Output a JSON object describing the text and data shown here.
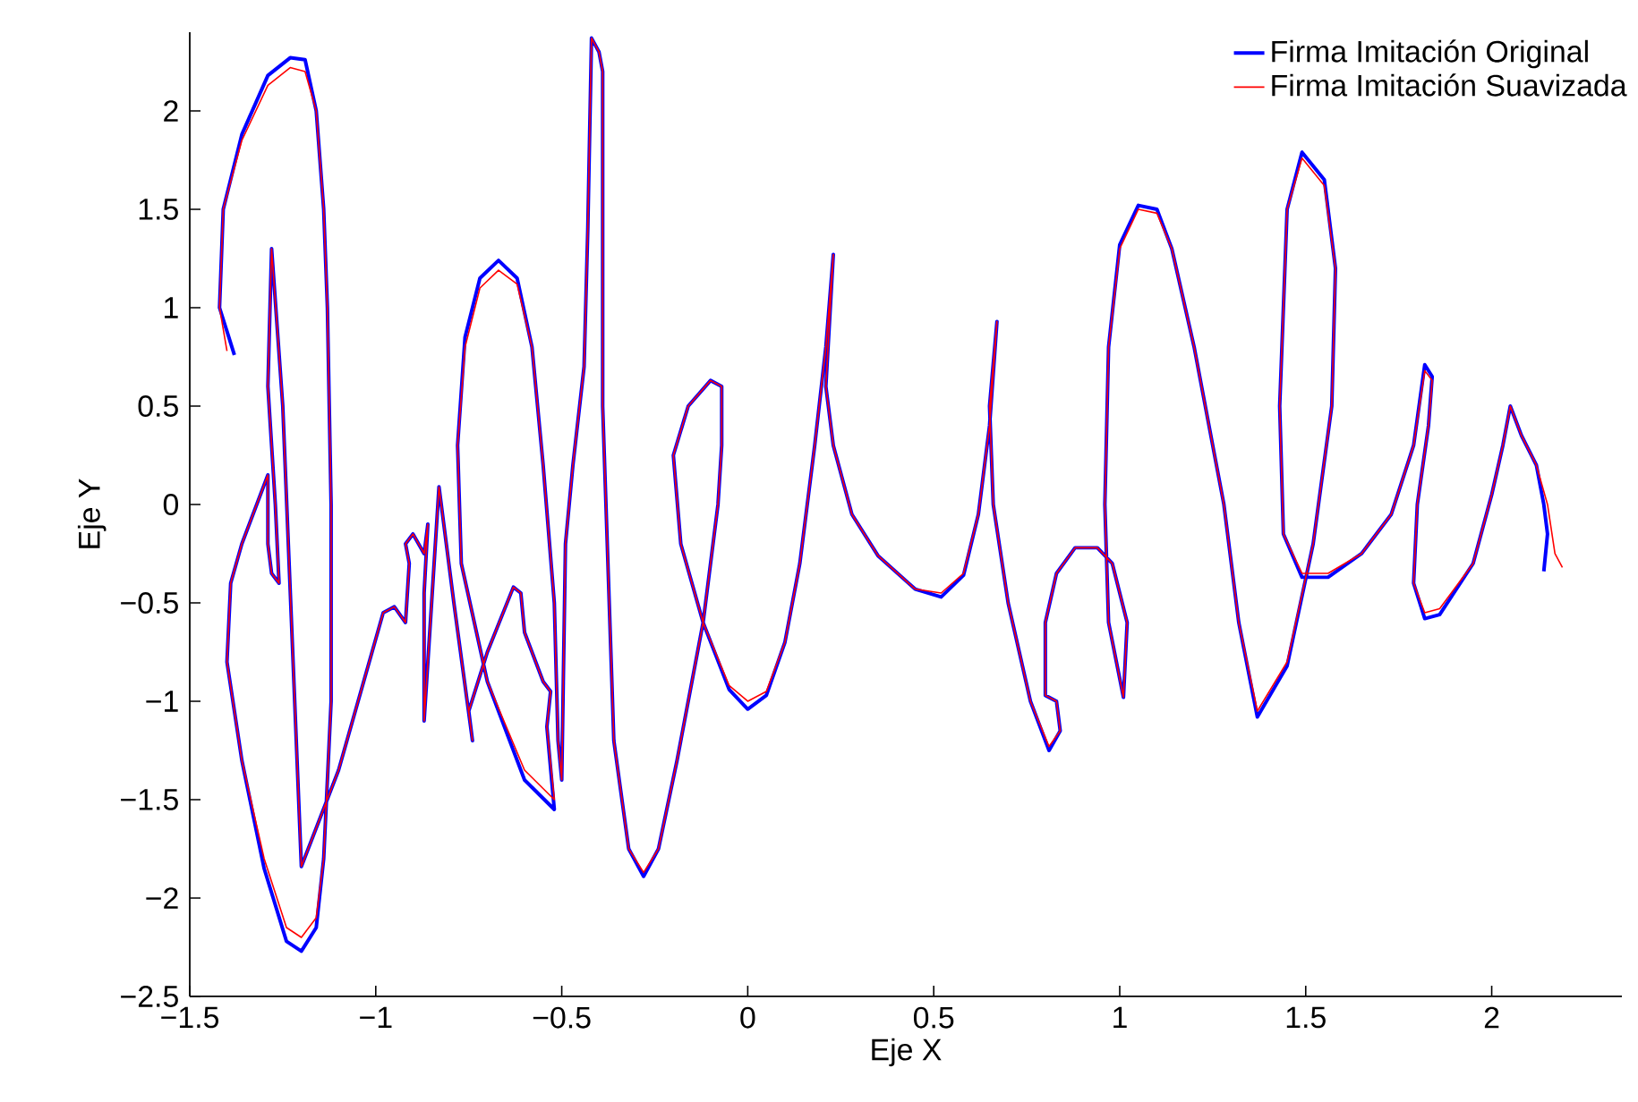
{
  "chart_data": {
    "type": "line",
    "xlabel": "Eje X",
    "ylabel": "Eje Y",
    "xlim": [
      -1.5,
      2.35
    ],
    "ylim": [
      -2.5,
      2.4
    ],
    "xticks": [
      {
        "value": -1.5,
        "label": "−1.5"
      },
      {
        "value": -1,
        "label": "−1"
      },
      {
        "value": -0.5,
        "label": "−0.5"
      },
      0,
      0.5,
      1,
      1.5,
      2
    ],
    "yticks": [
      {
        "value": -2.5,
        "label": "−2.5"
      },
      {
        "value": -2,
        "label": "−2"
      },
      {
        "value": -1.5,
        "label": "−1.5"
      },
      {
        "value": -1,
        "label": "−1"
      },
      {
        "value": -0.5,
        "label": "−0.5"
      },
      0,
      0.5,
      1,
      1.5,
      2
    ],
    "grid": false,
    "legend": "top right",
    "marker": "none",
    "line_style": "solid",
    "series": [
      {
        "name": "Firma Imitación Original",
        "color": "#0000ff",
        "x": [
          -1.38,
          -1.42,
          -1.41,
          -1.36,
          -1.29,
          -1.23,
          -1.19,
          -1.16,
          -1.14,
          -1.13,
          -1.12,
          -1.12,
          -1.14,
          -1.16,
          -1.2,
          -1.24,
          -1.3,
          -1.36,
          -1.4,
          -1.39,
          -1.36,
          -1.32,
          -1.29,
          -1.29,
          -1.28,
          -1.26,
          -1.27,
          -1.29,
          -1.28,
          -1.25,
          -1.2,
          -1.1,
          -0.98,
          -0.95,
          -0.92,
          -0.91,
          -0.92,
          -0.9,
          -0.87,
          -0.86,
          -0.87,
          -0.87,
          -0.83,
          -0.79,
          -0.74,
          -0.75,
          -0.7,
          -0.63,
          -0.61,
          -0.6,
          -0.57,
          -0.55,
          -0.53,
          -0.54,
          -0.52,
          -0.6,
          -0.7,
          -0.77,
          -0.78,
          -0.76,
          -0.72,
          -0.67,
          -0.62,
          -0.58,
          -0.55,
          -0.52,
          -0.51,
          -0.5,
          -0.49,
          -0.47,
          -0.44,
          -0.43,
          -0.42,
          -0.4,
          -0.39,
          -0.39,
          -0.36,
          -0.32,
          -0.28,
          -0.24,
          -0.19,
          -0.12,
          -0.08,
          -0.07,
          -0.07,
          -0.1,
          -0.16,
          -0.2,
          -0.18,
          -0.12,
          -0.05,
          0.0,
          0.05,
          0.1,
          0.14,
          0.18,
          0.21,
          0.23,
          0.21,
          0.23,
          0.28,
          0.35,
          0.45,
          0.52,
          0.58,
          0.62,
          0.65,
          0.67,
          0.65,
          0.66,
          0.7,
          0.76,
          0.81,
          0.84,
          0.83,
          0.8,
          0.8,
          0.83,
          0.88,
          0.94,
          0.98,
          1.02,
          1.01,
          0.97,
          0.96,
          0.97,
          1.0,
          1.05,
          1.1,
          1.14,
          1.2,
          1.28,
          1.32,
          1.37,
          1.45,
          1.52,
          1.57,
          1.58,
          1.55,
          1.49,
          1.45,
          1.43,
          1.44,
          1.49,
          1.56,
          1.65,
          1.73,
          1.79,
          1.82,
          1.84,
          1.83,
          1.8,
          1.79,
          1.82,
          1.86,
          1.95,
          2.0,
          2.03,
          2.05,
          2.08,
          2.12,
          2.14,
          2.15,
          2.14
        ],
        "values": [
          0.76,
          1.0,
          1.5,
          1.88,
          2.18,
          2.27,
          2.26,
          2.0,
          1.5,
          1.0,
          0.0,
          -1.0,
          -1.8,
          -2.15,
          -2.27,
          -2.22,
          -1.85,
          -1.3,
          -0.8,
          -0.4,
          -0.2,
          0.0,
          0.15,
          -0.2,
          -0.35,
          -0.4,
          0.0,
          0.6,
          1.3,
          0.5,
          -1.84,
          -1.35,
          -0.55,
          -0.52,
          -0.6,
          -0.3,
          -0.2,
          -0.15,
          -0.25,
          -0.1,
          -0.45,
          -1.1,
          0.09,
          -0.5,
          -1.2,
          -1.05,
          -0.75,
          -0.42,
          -0.45,
          -0.65,
          -0.8,
          -0.9,
          -0.95,
          -1.13,
          -1.55,
          -1.4,
          -0.9,
          -0.3,
          0.3,
          0.85,
          1.15,
          1.24,
          1.15,
          0.8,
          0.2,
          -0.5,
          -1.2,
          -1.4,
          -0.2,
          0.2,
          0.7,
          1.4,
          2.37,
          2.3,
          2.2,
          0.5,
          -1.2,
          -1.75,
          -1.89,
          -1.75,
          -1.3,
          -0.6,
          0.0,
          0.3,
          0.6,
          0.63,
          0.5,
          0.25,
          -0.2,
          -0.6,
          -0.94,
          -1.04,
          -0.97,
          -0.7,
          -0.3,
          0.3,
          0.8,
          1.27,
          0.6,
          0.3,
          -0.05,
          -0.26,
          -0.43,
          -0.47,
          -0.36,
          -0.05,
          0.4,
          0.93,
          0.5,
          0.0,
          -0.5,
          -1.0,
          -1.25,
          -1.15,
          -1.0,
          -0.97,
          -0.6,
          -0.35,
          -0.22,
          -0.22,
          -0.3,
          -0.6,
          -0.98,
          -0.6,
          0.0,
          0.8,
          1.32,
          1.52,
          1.5,
          1.3,
          0.8,
          0.0,
          -0.6,
          -1.08,
          -0.82,
          -0.2,
          0.5,
          1.2,
          1.65,
          1.79,
          1.5,
          0.5,
          -0.15,
          -0.37,
          -0.37,
          -0.25,
          -0.05,
          0.3,
          0.71,
          0.65,
          0.4,
          0.0,
          -0.4,
          -0.58,
          -0.56,
          -0.3,
          0.05,
          0.3,
          0.5,
          0.35,
          0.2,
          0.0,
          -0.15,
          -0.34
        ]
      },
      {
        "name": "Firma Imitación Suavizada",
        "color": "#ff0000",
        "x": [
          -1.4,
          -1.42,
          -1.41,
          -1.36,
          -1.29,
          -1.23,
          -1.19,
          -1.16,
          -1.14,
          -1.13,
          -1.12,
          -1.12,
          -1.14,
          -1.16,
          -1.2,
          -1.24,
          -1.3,
          -1.36,
          -1.4,
          -1.39,
          -1.36,
          -1.32,
          -1.29,
          -1.29,
          -1.28,
          -1.26,
          -1.27,
          -1.29,
          -1.28,
          -1.25,
          -1.2,
          -1.1,
          -0.98,
          -0.95,
          -0.92,
          -0.91,
          -0.92,
          -0.9,
          -0.87,
          -0.86,
          -0.87,
          -0.87,
          -0.83,
          -0.79,
          -0.74,
          -0.75,
          -0.7,
          -0.63,
          -0.61,
          -0.6,
          -0.57,
          -0.55,
          -0.53,
          -0.54,
          -0.52,
          -0.6,
          -0.7,
          -0.77,
          -0.78,
          -0.76,
          -0.72,
          -0.67,
          -0.62,
          -0.58,
          -0.55,
          -0.52,
          -0.51,
          -0.5,
          -0.49,
          -0.47,
          -0.44,
          -0.43,
          -0.42,
          -0.4,
          -0.39,
          -0.39,
          -0.36,
          -0.32,
          -0.28,
          -0.24,
          -0.19,
          -0.12,
          -0.08,
          -0.07,
          -0.07,
          -0.1,
          -0.16,
          -0.2,
          -0.18,
          -0.12,
          -0.05,
          0.0,
          0.05,
          0.1,
          0.14,
          0.18,
          0.21,
          0.23,
          0.21,
          0.23,
          0.28,
          0.35,
          0.45,
          0.52,
          0.58,
          0.62,
          0.65,
          0.67,
          0.65,
          0.66,
          0.7,
          0.76,
          0.81,
          0.84,
          0.83,
          0.8,
          0.8,
          0.83,
          0.88,
          0.94,
          0.98,
          1.02,
          1.01,
          0.97,
          0.96,
          0.97,
          1.0,
          1.05,
          1.1,
          1.14,
          1.2,
          1.28,
          1.32,
          1.37,
          1.45,
          1.52,
          1.57,
          1.58,
          1.55,
          1.49,
          1.45,
          1.43,
          1.44,
          1.49,
          1.56,
          1.65,
          1.73,
          1.79,
          1.82,
          1.84,
          1.83,
          1.8,
          1.79,
          1.82,
          1.86,
          1.95,
          2.0,
          2.03,
          2.05,
          2.08,
          2.12,
          2.15,
          2.17,
          2.19
        ],
        "values": [
          0.78,
          1.0,
          1.5,
          1.85,
          2.13,
          2.22,
          2.2,
          2.0,
          1.5,
          1.0,
          0.0,
          -1.0,
          -1.8,
          -2.1,
          -2.2,
          -2.15,
          -1.8,
          -1.3,
          -0.8,
          -0.4,
          -0.2,
          0.0,
          0.15,
          -0.2,
          -0.35,
          -0.4,
          0.0,
          0.6,
          1.3,
          0.5,
          -1.84,
          -1.35,
          -0.55,
          -0.52,
          -0.6,
          -0.3,
          -0.2,
          -0.15,
          -0.25,
          -0.1,
          -0.45,
          -1.1,
          0.09,
          -0.5,
          -1.2,
          -1.05,
          -0.75,
          -0.42,
          -0.45,
          -0.65,
          -0.8,
          -0.9,
          -0.95,
          -1.13,
          -1.5,
          -1.35,
          -0.9,
          -0.3,
          0.3,
          0.8,
          1.1,
          1.19,
          1.12,
          0.8,
          0.2,
          -0.5,
          -1.2,
          -1.4,
          -0.2,
          0.2,
          0.7,
          1.4,
          2.37,
          2.3,
          2.2,
          0.5,
          -1.2,
          -1.75,
          -1.87,
          -1.75,
          -1.3,
          -0.6,
          0.0,
          0.3,
          0.6,
          0.63,
          0.5,
          0.25,
          -0.2,
          -0.6,
          -0.92,
          -1.0,
          -0.95,
          -0.7,
          -0.3,
          0.3,
          0.8,
          1.27,
          0.6,
          0.3,
          -0.05,
          -0.26,
          -0.43,
          -0.45,
          -0.35,
          -0.05,
          0.4,
          0.93,
          0.5,
          0.0,
          -0.5,
          -1.0,
          -1.23,
          -1.15,
          -1.0,
          -0.97,
          -0.6,
          -0.35,
          -0.22,
          -0.22,
          -0.3,
          -0.6,
          -0.98,
          -0.6,
          0.0,
          0.8,
          1.3,
          1.5,
          1.48,
          1.3,
          0.8,
          0.0,
          -0.6,
          -1.05,
          -0.8,
          -0.2,
          0.5,
          1.2,
          1.62,
          1.76,
          1.5,
          0.5,
          -0.15,
          -0.35,
          -0.35,
          -0.25,
          -0.05,
          0.3,
          0.68,
          0.63,
          0.4,
          0.0,
          -0.4,
          -0.55,
          -0.53,
          -0.3,
          0.05,
          0.3,
          0.5,
          0.35,
          0.2,
          0.0,
          -0.25,
          -0.32
        ]
      }
    ]
  }
}
